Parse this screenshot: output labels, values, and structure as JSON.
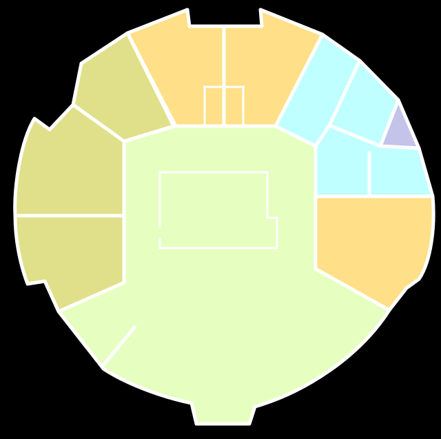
{
  "colors": {
    "background": "#000000",
    "walls": "#ffffff",
    "olive": "#e0e08a",
    "yellow": "#ffe088",
    "cyan": "#c0ffff",
    "lavender": "#c4c4ea",
    "green": "#e6ffc0"
  },
  "rooms": [
    {
      "name": "room-central-hall",
      "color": "green"
    },
    {
      "name": "room-top-left-upper",
      "color": "olive"
    },
    {
      "name": "room-left-upper",
      "color": "olive"
    },
    {
      "name": "room-left-lower",
      "color": "olive"
    },
    {
      "name": "room-top-yellow",
      "color": "yellow"
    },
    {
      "name": "room-top-right-cyan",
      "color": "cyan"
    },
    {
      "name": "room-right-cyan-mid",
      "color": "cyan"
    },
    {
      "name": "room-right-cyan-lower",
      "color": "cyan"
    },
    {
      "name": "room-right-lavender",
      "color": "lavender"
    },
    {
      "name": "room-right-yellow",
      "color": "yellow"
    }
  ]
}
